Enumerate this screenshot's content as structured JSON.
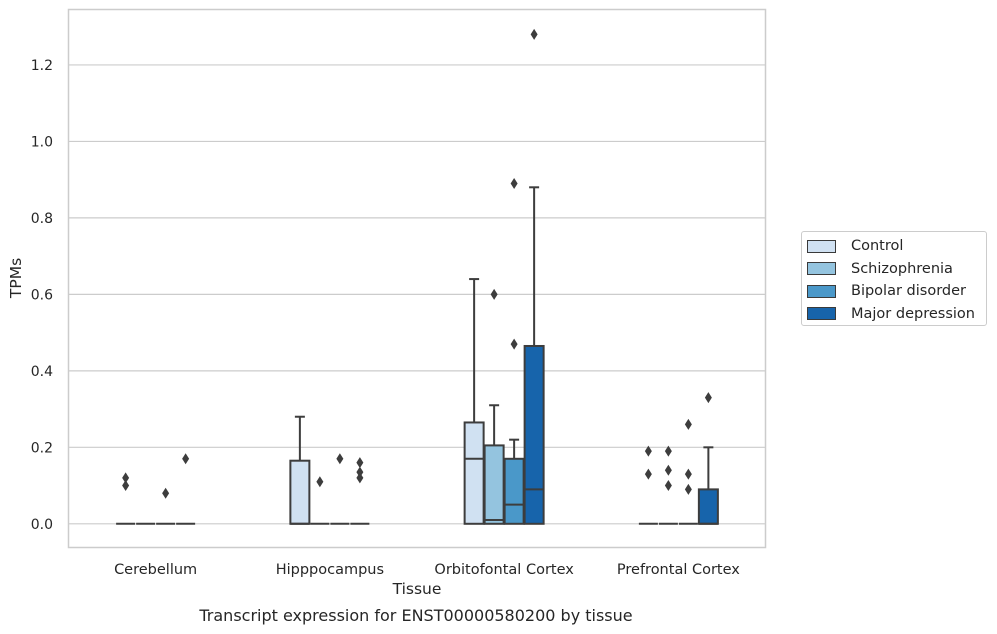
{
  "chart_data": {
    "type": "box",
    "xlabel": "Tissue",
    "ylabel": "TPMs",
    "ylim": [
      -0.062,
      1.345
    ],
    "yticks": [
      "0.0",
      "0.2",
      "0.4",
      "0.6",
      "0.8",
      "1.0",
      "1.2"
    ],
    "ytick_values": [
      0.0,
      0.2,
      0.4,
      0.6,
      0.8,
      1.0,
      1.2
    ],
    "grid": "horizontal",
    "legend_position": "right",
    "categories": [
      "Cerebellum",
      "Hipppocampus",
      "Orbitofontal Cortex",
      "Prefrontal Cortex"
    ],
    "series": [
      {
        "name": "Control",
        "color": "#d0e1f2",
        "boxes": [
          {
            "q1": 0.0,
            "median": 0.0,
            "q3": 0.0,
            "whisker_low": 0.0,
            "whisker_high": 0.0,
            "outliers": [
              0.1,
              0.12
            ]
          },
          {
            "q1": 0.0,
            "median": 0.0,
            "q3": 0.165,
            "whisker_low": 0.0,
            "whisker_high": 0.28,
            "outliers": []
          },
          {
            "q1": 0.0,
            "median": 0.17,
            "q3": 0.265,
            "whisker_low": 0.0,
            "whisker_high": 0.64,
            "outliers": []
          },
          {
            "q1": 0.0,
            "median": 0.0,
            "q3": 0.0,
            "whisker_low": 0.0,
            "whisker_high": 0.0,
            "outliers": [
              0.13,
              0.19
            ]
          }
        ]
      },
      {
        "name": "Schizophrenia",
        "color": "#94c4df",
        "boxes": [
          {
            "q1": 0.0,
            "median": 0.0,
            "q3": 0.0,
            "whisker_low": 0.0,
            "whisker_high": 0.0,
            "outliers": []
          },
          {
            "q1": 0.0,
            "median": 0.0,
            "q3": 0.0,
            "whisker_low": 0.0,
            "whisker_high": 0.0,
            "outliers": [
              0.11
            ]
          },
          {
            "q1": 0.0,
            "median": 0.01,
            "q3": 0.205,
            "whisker_low": 0.0,
            "whisker_high": 0.31,
            "outliers": [
              0.6
            ]
          },
          {
            "q1": 0.0,
            "median": 0.0,
            "q3": 0.0,
            "whisker_low": 0.0,
            "whisker_high": 0.0,
            "outliers": [
              0.1,
              0.14,
              0.19
            ]
          }
        ]
      },
      {
        "name": "Bipolar disorder",
        "color": "#4a98c9",
        "boxes": [
          {
            "q1": 0.0,
            "median": 0.0,
            "q3": 0.0,
            "whisker_low": 0.0,
            "whisker_high": 0.0,
            "outliers": [
              0.08
            ]
          },
          {
            "q1": 0.0,
            "median": 0.0,
            "q3": 0.0,
            "whisker_low": 0.0,
            "whisker_high": 0.0,
            "outliers": [
              0.17
            ]
          },
          {
            "q1": 0.0,
            "median": 0.05,
            "q3": 0.17,
            "whisker_low": 0.0,
            "whisker_high": 0.22,
            "outliers": [
              0.47,
              0.89
            ]
          },
          {
            "q1": 0.0,
            "median": 0.0,
            "q3": 0.0,
            "whisker_low": 0.0,
            "whisker_high": 0.0,
            "outliers": [
              0.09,
              0.13,
              0.26
            ]
          }
        ]
      },
      {
        "name": "Major depression",
        "color": "#1764ab",
        "boxes": [
          {
            "q1": 0.0,
            "median": 0.0,
            "q3": 0.0,
            "whisker_low": 0.0,
            "whisker_high": 0.0,
            "outliers": [
              0.17
            ]
          },
          {
            "q1": 0.0,
            "median": 0.0,
            "q3": 0.0,
            "whisker_low": 0.0,
            "whisker_high": 0.0,
            "outliers": [
              0.12,
              0.135,
              0.16
            ]
          },
          {
            "q1": 0.0,
            "median": 0.09,
            "q3": 0.465,
            "whisker_low": 0.0,
            "whisker_high": 0.88,
            "outliers": [
              1.28
            ]
          },
          {
            "q1": 0.0,
            "median": 0.0,
            "q3": 0.09,
            "whisker_low": 0.0,
            "whisker_high": 0.2,
            "outliers": [
              0.33
            ]
          }
        ]
      }
    ]
  },
  "caption": "Transcript expression for ENST00000580200 by tissue"
}
